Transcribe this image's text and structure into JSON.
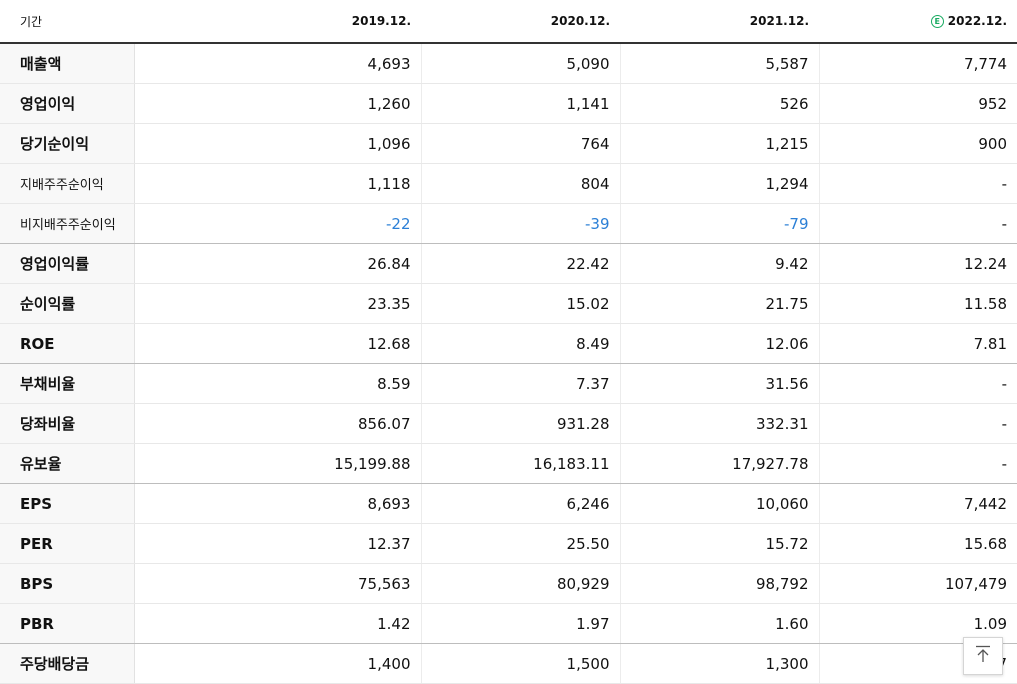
{
  "header": {
    "period_label": "기간",
    "estimate_icon": "E",
    "periods": [
      "2019.12.",
      "2020.12.",
      "2021.12.",
      "2022.12."
    ]
  },
  "rows": [
    {
      "label": "매출액",
      "values": [
        "4,693",
        "5,090",
        "5,587",
        "7,774"
      ]
    },
    {
      "label": "영업이익",
      "values": [
        "1,260",
        "1,141",
        "526",
        "952"
      ]
    },
    {
      "label": "당기순이익",
      "values": [
        "1,096",
        "764",
        "1,215",
        "900"
      ]
    },
    {
      "label": "지배주주순이익",
      "values": [
        "1,118",
        "804",
        "1,294",
        "-"
      ]
    },
    {
      "label": "비지배주주순이익",
      "values": [
        "-22",
        "-39",
        "-79",
        "-"
      ]
    },
    {
      "label": "영업이익률",
      "values": [
        "26.84",
        "22.42",
        "9.42",
        "12.24"
      ]
    },
    {
      "label": "순이익률",
      "values": [
        "23.35",
        "15.02",
        "21.75",
        "11.58"
      ]
    },
    {
      "label": "ROE",
      "values": [
        "12.68",
        "8.49",
        "12.06",
        "7.81"
      ]
    },
    {
      "label": "부채비율",
      "values": [
        "8.59",
        "7.37",
        "31.56",
        "-"
      ]
    },
    {
      "label": "당좌비율",
      "values": [
        "856.07",
        "931.28",
        "332.31",
        "-"
      ]
    },
    {
      "label": "유보율",
      "values": [
        "15,199.88",
        "16,183.11",
        "17,927.78",
        "-"
      ]
    },
    {
      "label": "EPS",
      "values": [
        "8,693",
        "6,246",
        "10,060",
        "7,442"
      ]
    },
    {
      "label": "PER",
      "values": [
        "12.37",
        "25.50",
        "15.72",
        "15.68"
      ]
    },
    {
      "label": "BPS",
      "values": [
        "75,563",
        "80,929",
        "98,792",
        "107,479"
      ]
    },
    {
      "label": "PBR",
      "values": [
        "1.42",
        "1.97",
        "1.60",
        "1.09"
      ]
    },
    {
      "label": "주당배당금",
      "values": [
        "1,400",
        "1,500",
        "1,300",
        "1,397"
      ]
    }
  ],
  "colors": {
    "negative": "#2b7fd6",
    "estimate_badge": "#1aab62"
  },
  "scroll_top_icon": "arrow-up-to-top-icon"
}
